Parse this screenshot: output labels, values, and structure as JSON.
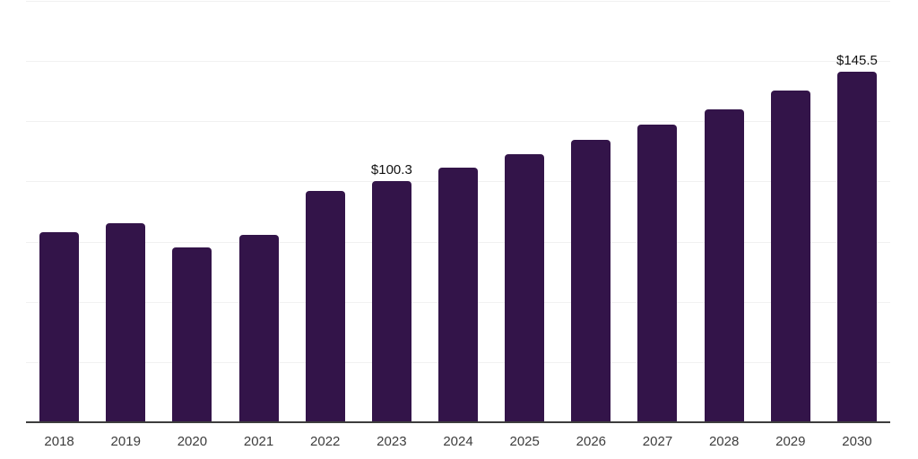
{
  "chart_data": {
    "type": "bar",
    "title": "",
    "xlabel": "",
    "ylabel": "",
    "categories": [
      "2018",
      "2019",
      "2020",
      "2021",
      "2022",
      "2023",
      "2024",
      "2025",
      "2026",
      "2027",
      "2028",
      "2029",
      "2030"
    ],
    "values": [
      79.0,
      82.7,
      72.6,
      77.9,
      96.1,
      100.3,
      105.8,
      111.4,
      117.3,
      123.7,
      130.0,
      137.8,
      145.5
    ],
    "bar_labels": [
      "",
      "",
      "",
      "",
      "",
      "$100.3",
      "",
      "",
      "",
      "",
      "",
      "",
      "$145.5"
    ],
    "ylim": [
      0,
      175
    ],
    "grid_step": 25,
    "grid": "horizontal-only",
    "legend_position": "none",
    "colors": {
      "bar_fill": "#331449",
      "gridline": "#f1f1f1",
      "axis_line": "#3d3d3d",
      "tick_label": "#3d3d3d",
      "data_label": "#111111",
      "background": "#ffffff"
    }
  }
}
